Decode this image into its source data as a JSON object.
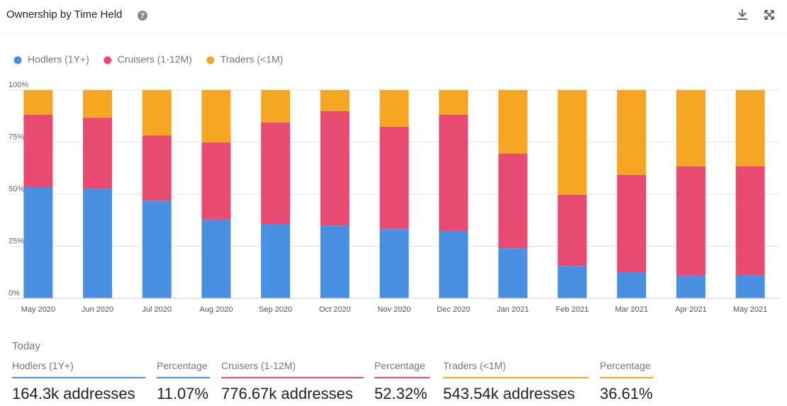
{
  "header": {
    "title": "Ownership by Time Held"
  },
  "chart_data": {
    "type": "stacked-bar",
    "categories": [
      "May 2020",
      "Jun 2020",
      "Jul 2020",
      "Aug 2020",
      "Sep 2020",
      "Oct 2020",
      "Nov 2020",
      "Dec 2020",
      "Jan 2021",
      "Feb 2021",
      "Mar 2021",
      "Apr 2021",
      "May 2021"
    ],
    "series": [
      {
        "name": "Hodlers (1Y+)",
        "color": "#4a90e2",
        "values": [
          53.4,
          52.7,
          46.9,
          37.8,
          35.7,
          35.0,
          33.3,
          32.3,
          24.1,
          15.6,
          12.6,
          10.9,
          11.07
        ]
      },
      {
        "name": "Cruisers (1-12M)",
        "color": "#e84a72",
        "values": [
          34.7,
          34.0,
          31.3,
          37.0,
          48.7,
          54.8,
          49.0,
          55.8,
          45.3,
          34.1,
          46.6,
          52.4,
          52.32
        ]
      },
      {
        "name": "Traders (<1M)",
        "color": "#f5a623",
        "values": [
          11.9,
          13.3,
          21.8,
          25.2,
          15.6,
          10.2,
          17.7,
          11.9,
          30.6,
          50.3,
          40.8,
          36.7,
          36.61
        ]
      }
    ],
    "ylim": [
      0,
      100
    ],
    "yticks": [
      {
        "value": 0,
        "label": "0%"
      },
      {
        "value": 25,
        "label": "25%"
      },
      {
        "value": 50,
        "label": "50%"
      },
      {
        "value": 75,
        "label": "75%"
      },
      {
        "value": 100,
        "label": "100%"
      }
    ],
    "grid": true
  },
  "summary": {
    "label": "Today",
    "items": [
      {
        "name": "Hodlers (1Y+)",
        "value": "164.3k addresses"
      },
      {
        "name": "Percentage",
        "value": "11.07%"
      },
      {
        "name": "Cruisers (1-12M)",
        "value": "776.67k addresses"
      },
      {
        "name": "Percentage",
        "value": "52.32%"
      },
      {
        "name": "Traders (<1M)",
        "value": "543.54k addresses"
      },
      {
        "name": "Percentage",
        "value": "36.61%"
      }
    ]
  }
}
